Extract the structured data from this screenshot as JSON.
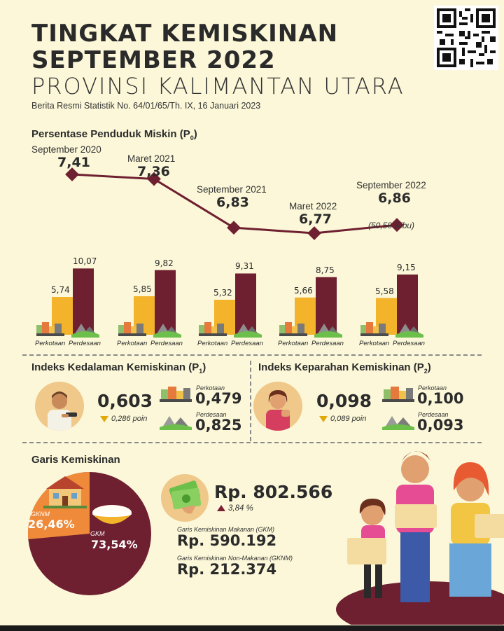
{
  "header": {
    "title_line1": "TINGKAT KEMISKINAN",
    "title_line2": "SEPTEMBER 2022",
    "title_line3": "PROVINSI KALIMANTAN UTARA",
    "subtitle": "Berita Resmi Statistik No. 64/01/65/Th. IX, 16 Januari 2023"
  },
  "colors": {
    "maroon": "#6e1f30",
    "gold": "#f3b32a",
    "orange": "#ef8a3a",
    "background": "#fbf7d8"
  },
  "p0": {
    "heading": "Persentase Penduduk Miskin (P",
    "heading_sub": "0",
    "heading_end": ")",
    "points": [
      {
        "label": "September 2020",
        "value": "7,41",
        "v": 7.41
      },
      {
        "label": "Maret 2021",
        "value": "7,36",
        "v": 7.36
      },
      {
        "label": "September 2021",
        "value": "6,83",
        "v": 6.83
      },
      {
        "label": "Maret 2022",
        "value": "6,77",
        "v": 6.77
      },
      {
        "label": "September 2022",
        "value": "6,86",
        "v": 6.86
      }
    ],
    "last_note": "(50,58 Ribu)"
  },
  "bars": {
    "label_urban": "Perkotaan",
    "label_rural": "Perdesaan",
    "groups": [
      {
        "urban": "5,74",
        "rural": "10,07",
        "u": 5.74,
        "r": 10.07
      },
      {
        "urban": "5,85",
        "rural": "9,82",
        "u": 5.85,
        "r": 9.82
      },
      {
        "urban": "5,32",
        "rural": "9,31",
        "u": 5.32,
        "r": 9.31
      },
      {
        "urban": "5,66",
        "rural": "8,75",
        "u": 5.66,
        "r": 8.75
      },
      {
        "urban": "5,58",
        "rural": "9,15",
        "u": 5.58,
        "r": 9.15
      }
    ]
  },
  "p1": {
    "heading": "Indeks Kedalaman Kemiskinan (P",
    "heading_sub": "1",
    "heading_end": ")",
    "value": "0,603",
    "change": "0,286 poin",
    "urban_label": "Perkotaan",
    "urban_value": "0,479",
    "rural_label": "Perdesaan",
    "rural_value": "0,825"
  },
  "p2": {
    "heading": "Indeks Keparahan Kemiskinan (P",
    "heading_sub": "2",
    "heading_end": ")",
    "value": "0,098",
    "change": "0,089 poin",
    "urban_label": "Perkotaan",
    "urban_value": "0,100",
    "rural_label": "Perdesaan",
    "rural_value": "0,093"
  },
  "garis": {
    "heading": "Garis Kemiskinan",
    "gknm_label": "GKNM",
    "gknm_pct": "26,46%",
    "gkm_label": "GKM",
    "gkm_pct": "73,54%",
    "gknm_share": 26.46,
    "total": "Rp. 802.566",
    "total_change": "3,84 %",
    "gkm_caption": "Garis Kemiskinan Makanan (GKM)",
    "gkm_value": "Rp. 590.192",
    "gknm_caption": "Garis Kemiskinan Non-Makanan (GKNM)",
    "gknm_value": "Rp. 212.374"
  },
  "icons": {
    "qr": "qr-code-icon",
    "city": "city-icon",
    "village": "village-icon",
    "money": "money-icon",
    "house": "house-icon",
    "rice": "rice-bowl-icon"
  }
}
